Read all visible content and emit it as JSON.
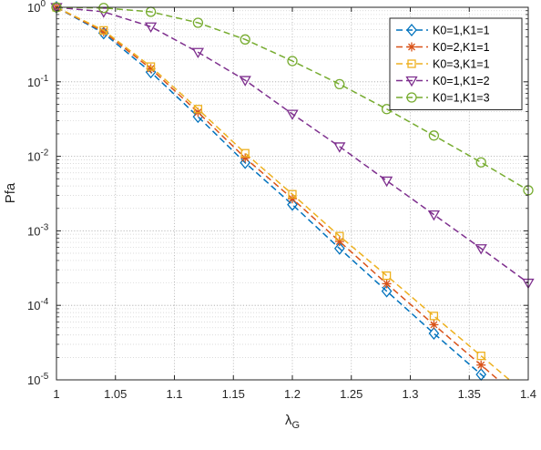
{
  "chart_data": {
    "type": "line",
    "title": "",
    "xlabel": "λ",
    "xlabel_sub": "G",
    "ylabel": "Pfa",
    "xlim": [
      1,
      1.4
    ],
    "ylim": [
      1e-05,
      1
    ],
    "yscale": "log",
    "grid": true,
    "minor_grid": true,
    "legend_position": "top-right",
    "x_ticks": [
      1,
      1.05,
      1.1,
      1.15,
      1.2,
      1.25,
      1.3,
      1.35,
      1.4
    ],
    "x_tick_labels": [
      "1",
      "1.05",
      "1.1",
      "1.15",
      "1.2",
      "1.25",
      "1.3",
      "1.35",
      "1.4"
    ],
    "y_ticks": [
      {
        "value": 1e-05,
        "base": "10",
        "exp": "-5"
      },
      {
        "value": 0.0001,
        "base": "10",
        "exp": "-4"
      },
      {
        "value": 0.001,
        "base": "10",
        "exp": "-3"
      },
      {
        "value": 0.01,
        "base": "10",
        "exp": "-2"
      },
      {
        "value": 0.1,
        "base": "10",
        "exp": "-1"
      },
      {
        "value": 1,
        "base": "10",
        "exp": "0"
      }
    ],
    "series": [
      {
        "name": "K0=1,K1=1",
        "color": "#0072BD",
        "marker": "diamond",
        "x": [
          1,
          1.04,
          1.08,
          1.12,
          1.16,
          1.2,
          1.24,
          1.28,
          1.32,
          1.36
        ],
        "y": [
          1.0,
          0.45,
          0.135,
          0.034,
          0.0082,
          0.00225,
          0.00058,
          0.000155,
          4.2e-05,
          1.18e-05
        ]
      },
      {
        "name": "K0=2,K1=1",
        "color": "#D95319",
        "marker": "asterisk",
        "x": [
          1,
          1.04,
          1.08,
          1.12,
          1.16,
          1.2,
          1.24,
          1.28,
          1.32,
          1.36
        ],
        "y": [
          1.0,
          0.47,
          0.15,
          0.039,
          0.0095,
          0.0027,
          0.00072,
          0.000195,
          5.5e-05,
          1.58e-05
        ]
      },
      {
        "name": "K0=3,K1=1",
        "color": "#EDB120",
        "marker": "square",
        "x": [
          1,
          1.04,
          1.08,
          1.12,
          1.16,
          1.2,
          1.24,
          1.28,
          1.32,
          1.36
        ],
        "y": [
          1.0,
          0.49,
          0.16,
          0.043,
          0.011,
          0.0031,
          0.00085,
          0.00025,
          7.2e-05,
          2.1e-05
        ]
      },
      {
        "name": "K0=1,K1=2",
        "color": "#7E2F8E",
        "marker": "triangle-down",
        "x": [
          1,
          1.04,
          1.08,
          1.12,
          1.16,
          1.2,
          1.24,
          1.28,
          1.32,
          1.36,
          1.4
        ],
        "y": [
          1.0,
          0.87,
          0.55,
          0.25,
          0.105,
          0.037,
          0.0135,
          0.0047,
          0.00165,
          0.00058,
          0.0002
        ]
      },
      {
        "name": "K0=1,K1=3",
        "color": "#77AC30",
        "marker": "circle",
        "x": [
          1,
          1.04,
          1.08,
          1.12,
          1.16,
          1.2,
          1.24,
          1.28,
          1.32,
          1.36,
          1.4
        ],
        "y": [
          1.0,
          0.98,
          0.87,
          0.62,
          0.37,
          0.19,
          0.093,
          0.043,
          0.019,
          0.0083,
          0.0035
        ]
      }
    ]
  }
}
